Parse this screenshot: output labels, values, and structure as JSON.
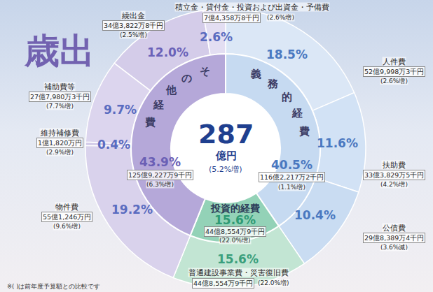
{
  "chart_data": {
    "type": "pie",
    "title": "歳出",
    "total": 287,
    "total_unit": "億円",
    "total_change": "(5.2%増)",
    "note": "※( )は前年度予算額との比較です",
    "data_labels": true,
    "series": [
      {
        "categories": [
          "義務的経費",
          "投資的経費",
          "その他経費"
        ],
        "values": [
          40.5,
          15.6,
          43.9
        ],
        "value_labels": [
          "40.5%",
          "15.6%",
          "43.9%"
        ],
        "amounts": [
          "116億2,217万2千円",
          "44億8,554万9千円",
          "125億9,227万9千円"
        ],
        "changes": [
          "(1.1%増)",
          "(22.0%増)",
          "(6.3%増)"
        ],
        "colors": [
          "#c6daf1",
          "#93d2b7",
          "#b5a8d9"
        ]
      },
      {
        "categories": [
          "人件費",
          "扶助費",
          "公債費",
          "普通建設事業費・災害復旧費",
          "物件費",
          "維持補修費",
          "補助費等",
          "繰出金",
          "積立金・貸付金・投資および出資金・予備費"
        ],
        "values": [
          18.5,
          11.6,
          10.4,
          15.6,
          19.2,
          0.4,
          9.7,
          12.0,
          2.6
        ],
        "value_labels": [
          "18.5%",
          "11.6%",
          "10.4%",
          "15.6%",
          "19.2%",
          "0.4%",
          "9.7%",
          "12.0%",
          "2.6%"
        ],
        "amounts": [
          "52億9,998万3千円",
          "33億3,829万5千円",
          "29億8,389万4千円",
          "44億8,554万9千円",
          "55億1,246万円",
          "1億1,820万円",
          "27億7,980万3千円",
          "34億3,822万8千円",
          "7億4,358万8千円"
        ],
        "changes": [
          "(2.6%増)",
          "(4.2%増)",
          "(3.6%減)",
          "(22.0%増)",
          "(9.6%増)",
          "(2.9%増)",
          "(7.7%増)",
          "(2.5%増)",
          "(2.6%増)"
        ],
        "colors": [
          "#dbe7f6",
          "#d2e2f5",
          "#c9dcf2",
          "#c2e5d3",
          "#d9d2ec",
          "#d2cae8",
          "#dcd5ee",
          "#d4cce9",
          "#e3def2"
        ]
      }
    ]
  }
}
